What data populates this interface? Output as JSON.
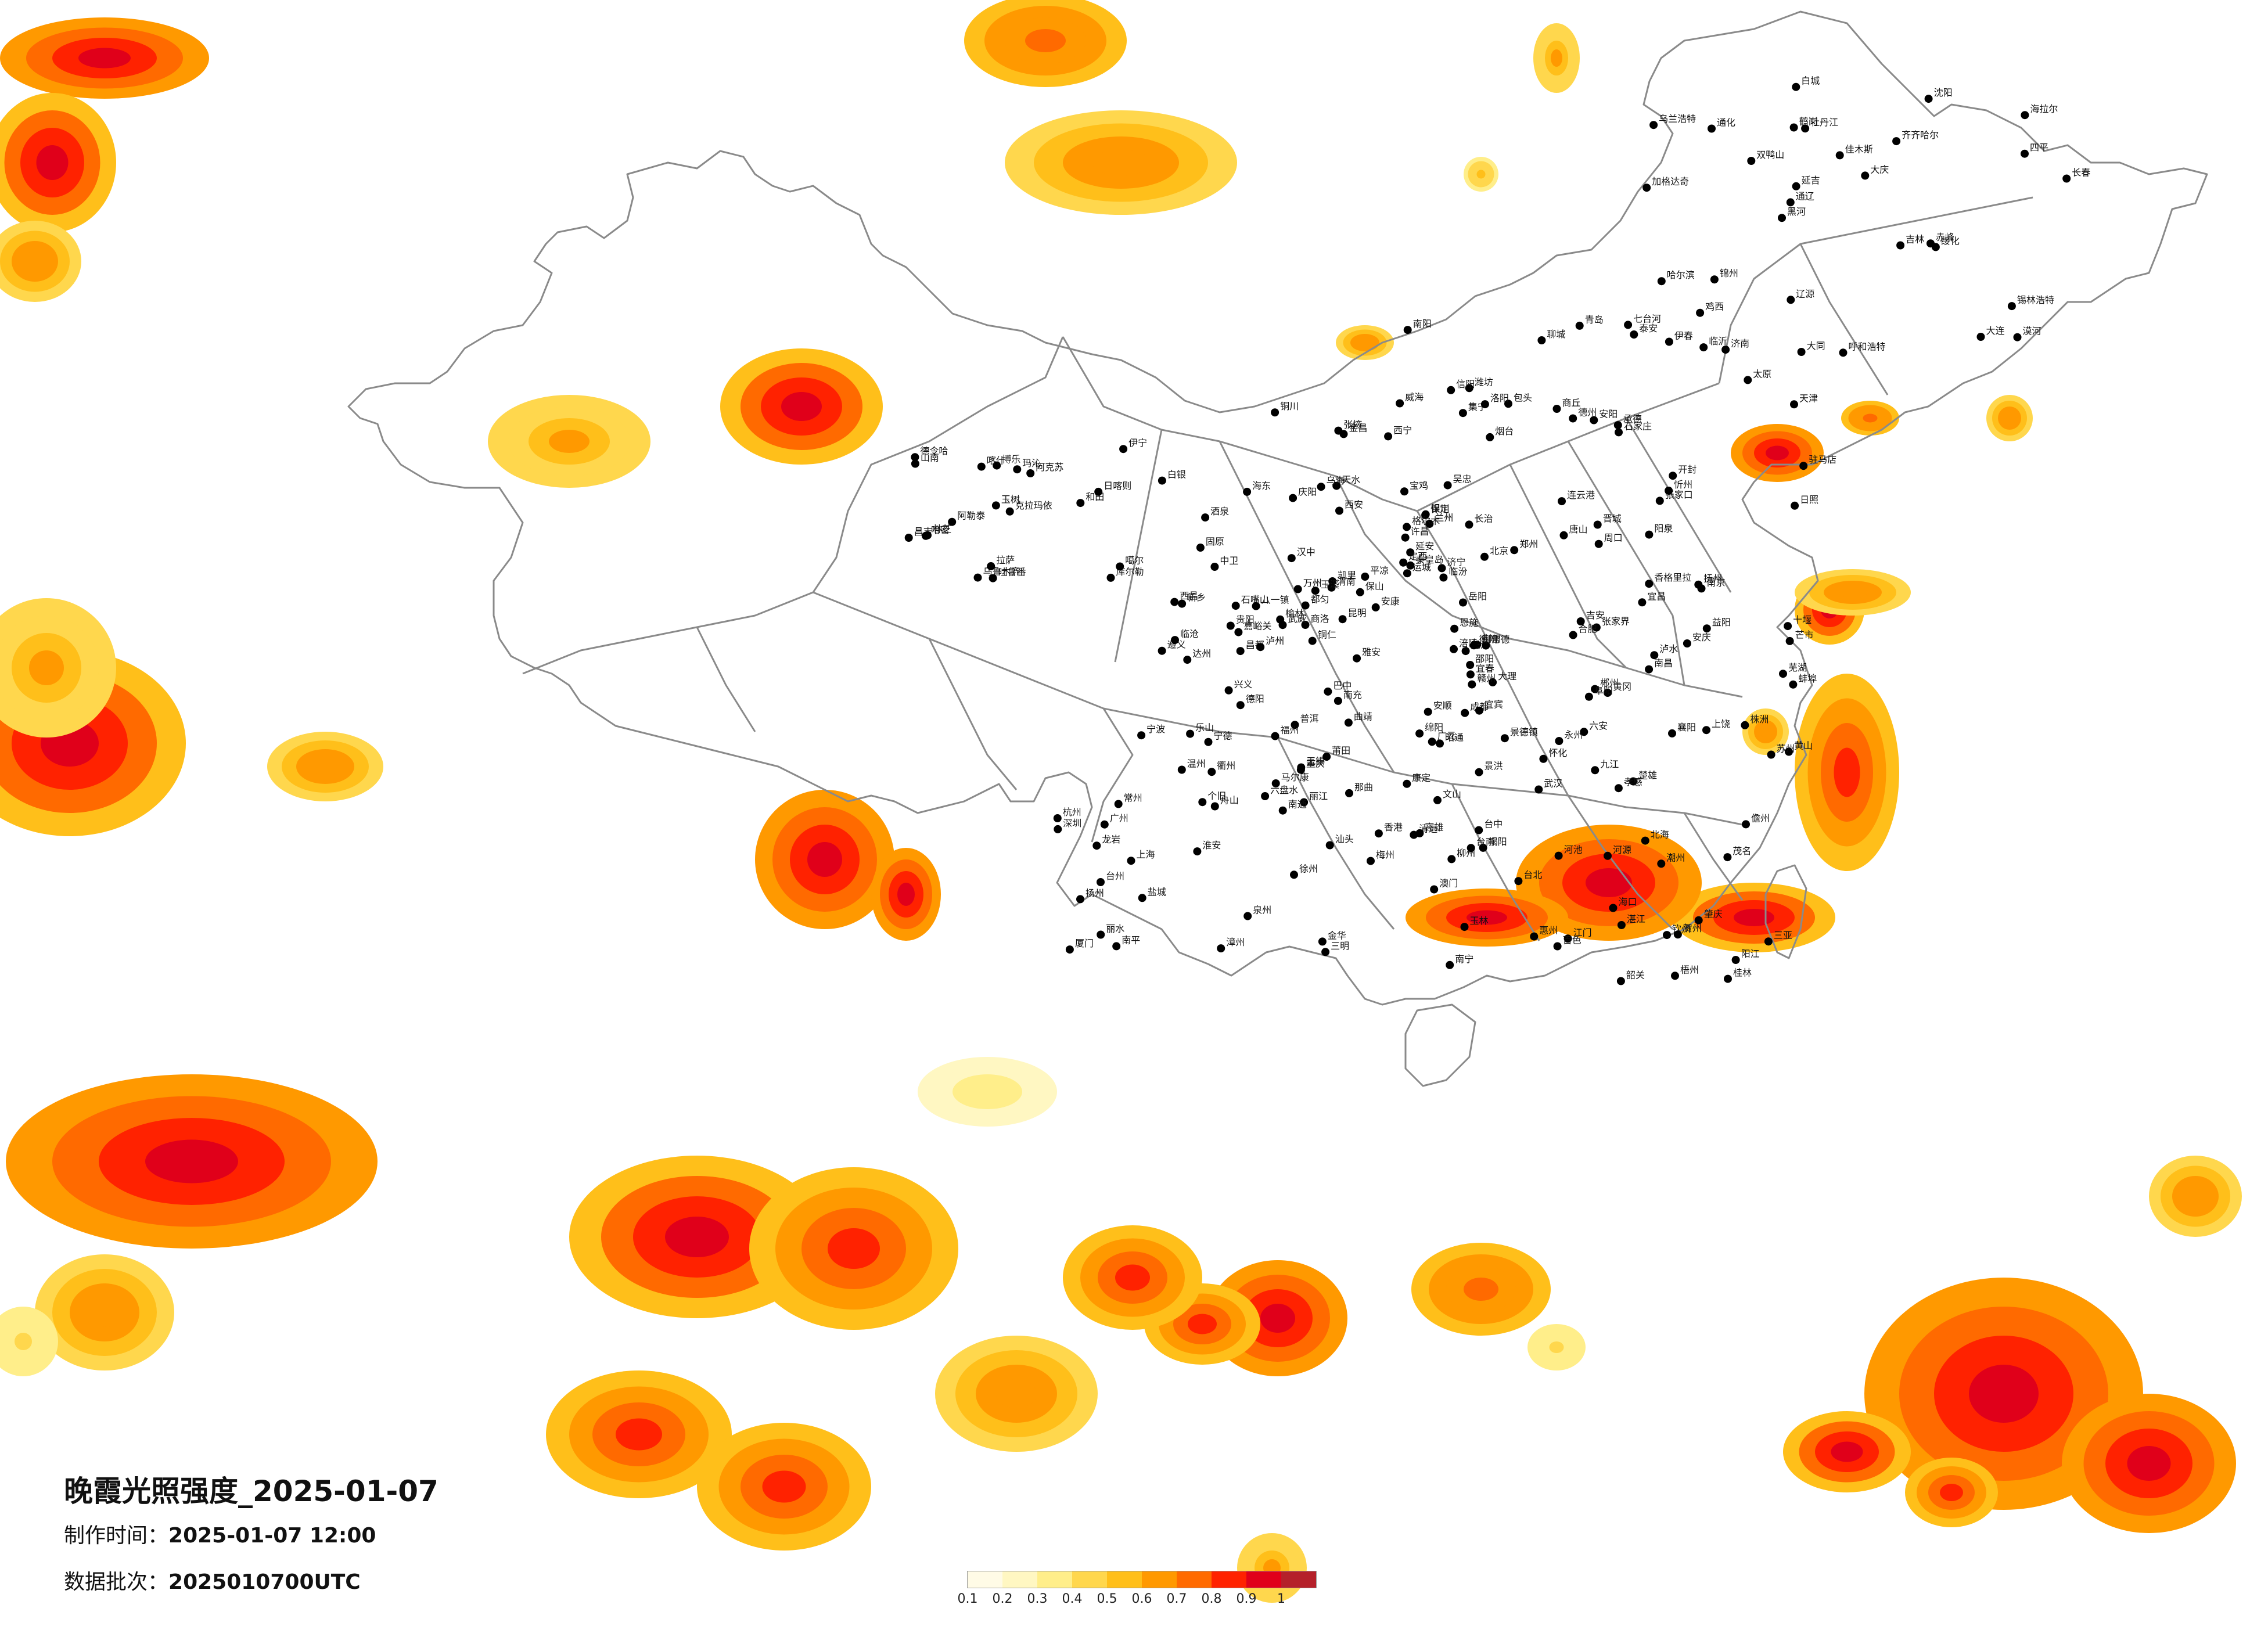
{
  "title": "晚霞光照强度_2025-01-07",
  "made_time": {
    "label": "制作时间：",
    "value": "2025-01-07 12:00"
  },
  "batch": {
    "label": "数据批次：",
    "value": "2025010700UTC"
  },
  "legend": {
    "colors": [
      "#fffbe6",
      "#fff7c2",
      "#ffee8a",
      "#ffd74d",
      "#ffbf1a",
      "#ff9900",
      "#ff6a00",
      "#ff2200",
      "#e0001a",
      "#b5202a"
    ],
    "ticks": [
      "0.1",
      "0.2",
      "0.3",
      "0.4",
      "0.5",
      "0.6",
      "0.7",
      "0.8",
      "0.9",
      "1"
    ]
  },
  "cities": [
    {
      "name": "漠河"
    },
    {
      "name": "加格达奇"
    },
    {
      "name": "海拉尔"
    },
    {
      "name": "黑河"
    },
    {
      "name": "齐齐哈尔"
    },
    {
      "name": "伊春"
    },
    {
      "name": "鹤岗"
    },
    {
      "name": "佳木斯"
    },
    {
      "name": "哈尔滨"
    },
    {
      "name": "双鸭山"
    },
    {
      "name": "七台河"
    },
    {
      "name": "鸡西"
    },
    {
      "name": "牡丹江"
    },
    {
      "name": "大庆"
    },
    {
      "name": "绥化"
    },
    {
      "name": "乌兰浩特"
    },
    {
      "name": "白城"
    },
    {
      "name": "长春"
    },
    {
      "name": "吉林"
    },
    {
      "name": "四平"
    },
    {
      "name": "通辽"
    },
    {
      "name": "辽源"
    },
    {
      "name": "延吉"
    },
    {
      "name": "通化"
    },
    {
      "name": "沈阳"
    },
    {
      "name": "锦州"
    },
    {
      "name": "大连"
    },
    {
      "name": "锡林浩特"
    },
    {
      "name": "赤峰"
    },
    {
      "name": "呼和浩特"
    },
    {
      "name": "包头"
    },
    {
      "name": "集宁"
    },
    {
      "name": "张家口"
    },
    {
      "name": "北京"
    },
    {
      "name": "天津"
    },
    {
      "name": "承德"
    },
    {
      "name": "秦皇岛"
    },
    {
      "name": "唐山"
    },
    {
      "name": "石家庄"
    },
    {
      "name": "保定"
    },
    {
      "name": "太原"
    },
    {
      "name": "大同"
    },
    {
      "name": "忻州"
    },
    {
      "name": "阳泉"
    },
    {
      "name": "长治"
    },
    {
      "name": "临汾"
    },
    {
      "name": "运城"
    },
    {
      "name": "晋城"
    },
    {
      "name": "济南"
    },
    {
      "name": "青岛"
    },
    {
      "name": "烟台"
    },
    {
      "name": "威海"
    },
    {
      "name": "潍坊"
    },
    {
      "name": "临沂"
    },
    {
      "name": "济宁"
    },
    {
      "name": "泰安"
    },
    {
      "name": "聊城"
    },
    {
      "name": "德州"
    },
    {
      "name": "日照"
    },
    {
      "name": "连云港"
    },
    {
      "name": "郑州"
    },
    {
      "name": "开封"
    },
    {
      "name": "洛阳"
    },
    {
      "name": "许昌"
    },
    {
      "name": "南阳"
    },
    {
      "name": "信阳"
    },
    {
      "name": "驻马店"
    },
    {
      "name": "商丘"
    },
    {
      "name": "周口"
    },
    {
      "name": "安阳"
    },
    {
      "name": "新乡"
    },
    {
      "name": "西安"
    },
    {
      "name": "延安"
    },
    {
      "name": "榆林"
    },
    {
      "name": "宝鸡"
    },
    {
      "name": "汉中"
    },
    {
      "name": "安康"
    },
    {
      "name": "商洛"
    },
    {
      "name": "渭南"
    },
    {
      "name": "铜川"
    },
    {
      "name": "兰州"
    },
    {
      "name": "天水"
    },
    {
      "name": "平凉"
    },
    {
      "name": "庆阳"
    },
    {
      "name": "定西"
    },
    {
      "name": "白银"
    },
    {
      "name": "武威"
    },
    {
      "name": "张掖"
    },
    {
      "name": "金昌"
    },
    {
      "name": "酒泉"
    },
    {
      "name": "嘉峪关"
    },
    {
      "name": "银川"
    },
    {
      "name": "吴忠"
    },
    {
      "name": "固原"
    },
    {
      "name": "中卫"
    },
    {
      "name": "石嘴山"
    },
    {
      "name": "乌海"
    },
    {
      "name": "西宁"
    },
    {
      "name": "海东"
    },
    {
      "name": "格尔木"
    },
    {
      "name": "德令哈"
    },
    {
      "name": "玛沁"
    },
    {
      "name": "玉树"
    },
    {
      "name": "乌鲁木齐"
    },
    {
      "name": "昌吉"
    },
    {
      "name": "克拉玛依"
    },
    {
      "name": "伊宁"
    },
    {
      "name": "博乐"
    },
    {
      "name": "吐鲁番"
    },
    {
      "name": "哈密"
    },
    {
      "name": "库尔勒"
    },
    {
      "name": "阿克苏"
    },
    {
      "name": "喀什"
    },
    {
      "name": "和田"
    },
    {
      "name": "阿勒泰"
    },
    {
      "name": "噶尔"
    },
    {
      "name": "拉萨"
    },
    {
      "name": "日喀则"
    },
    {
      "name": "山南"
    },
    {
      "name": "林芝"
    },
    {
      "name": "那曲"
    },
    {
      "name": "昌都"
    },
    {
      "name": "八一镇"
    },
    {
      "name": "成都"
    },
    {
      "name": "绵阳"
    },
    {
      "name": "德阳"
    },
    {
      "name": "乐山"
    },
    {
      "name": "宜宾"
    },
    {
      "name": "泸州"
    },
    {
      "name": "南充"
    },
    {
      "name": "达州"
    },
    {
      "name": "广元"
    },
    {
      "name": "巴中"
    },
    {
      "name": "雅安"
    },
    {
      "name": "西昌"
    },
    {
      "name": "马尔康"
    },
    {
      "name": "康定"
    },
    {
      "name": "重庆"
    },
    {
      "name": "万州"
    },
    {
      "name": "涪陵"
    },
    {
      "name": "贵阳"
    },
    {
      "name": "遵义"
    },
    {
      "name": "六盘水"
    },
    {
      "name": "安顺"
    },
    {
      "name": "凯里"
    },
    {
      "name": "都匀"
    },
    {
      "name": "铜仁"
    },
    {
      "name": "兴义"
    },
    {
      "name": "昆明"
    },
    {
      "name": "曲靖"
    },
    {
      "name": "玉溪"
    },
    {
      "name": "大理"
    },
    {
      "name": "丽江"
    },
    {
      "name": "保山"
    },
    {
      "name": "临沧"
    },
    {
      "name": "普洱"
    },
    {
      "name": "景洪"
    },
    {
      "name": "个旧"
    },
    {
      "name": "文山"
    },
    {
      "name": "昭通"
    },
    {
      "name": "楚雄"
    },
    {
      "name": "芒市"
    },
    {
      "name": "香格里拉"
    },
    {
      "name": "泸水"
    },
    {
      "name": "武汉"
    },
    {
      "name": "宜昌"
    },
    {
      "name": "襄阳"
    },
    {
      "name": "十堰"
    },
    {
      "name": "荆州"
    },
    {
      "name": "恩施"
    },
    {
      "name": "黄冈"
    },
    {
      "name": "孝感"
    },
    {
      "name": "长沙"
    },
    {
      "name": "岳阳"
    },
    {
      "name": "常德"
    },
    {
      "name": "衡阳"
    },
    {
      "name": "邵阳"
    },
    {
      "name": "怀化"
    },
    {
      "name": "郴州"
    },
    {
      "name": "株洲"
    },
    {
      "name": "永州"
    },
    {
      "name": "张家界"
    },
    {
      "name": "益阳"
    },
    {
      "name": "南昌"
    },
    {
      "name": "九江"
    },
    {
      "name": "赣州"
    },
    {
      "name": "吉安"
    },
    {
      "name": "上饶"
    },
    {
      "name": "景德镇"
    },
    {
      "name": "宜春"
    },
    {
      "name": "抚州"
    },
    {
      "name": "合肥"
    },
    {
      "name": "芜湖"
    },
    {
      "name": "安庆"
    },
    {
      "name": "蚌埠"
    },
    {
      "name": "阜阳"
    },
    {
      "name": "黄山"
    },
    {
      "name": "六安"
    },
    {
      "name": "南京"
    },
    {
      "name": "苏州"
    },
    {
      "name": "无锡"
    },
    {
      "name": "常州"
    },
    {
      "name": "徐州"
    },
    {
      "name": "南通"
    },
    {
      "name": "盐城"
    },
    {
      "name": "扬州"
    },
    {
      "name": "淮安"
    },
    {
      "name": "上海"
    },
    {
      "name": "杭州"
    },
    {
      "name": "宁波"
    },
    {
      "name": "温州"
    },
    {
      "name": "金华"
    },
    {
      "name": "衢州"
    },
    {
      "name": "丽水"
    },
    {
      "name": "台州"
    },
    {
      "name": "舟山"
    },
    {
      "name": "福州"
    },
    {
      "name": "厦门"
    },
    {
      "name": "泉州"
    },
    {
      "name": "漳州"
    },
    {
      "name": "莆田"
    },
    {
      "name": "南平"
    },
    {
      "name": "三明"
    },
    {
      "name": "龙岩"
    },
    {
      "name": "宁德"
    },
    {
      "name": "广州"
    },
    {
      "name": "深圳"
    },
    {
      "name": "汕头"
    },
    {
      "name": "湛江"
    },
    {
      "name": "茂名"
    },
    {
      "name": "肇庆"
    },
    {
      "name": "韶关"
    },
    {
      "name": "梅州"
    },
    {
      "name": "惠州"
    },
    {
      "name": "江门"
    },
    {
      "name": "阳江"
    },
    {
      "name": "清远"
    },
    {
      "name": "河源"
    },
    {
      "name": "潮州"
    },
    {
      "name": "揭阳"
    },
    {
      "name": "南宁"
    },
    {
      "name": "桂林"
    },
    {
      "name": "柳州"
    },
    {
      "name": "梧州"
    },
    {
      "name": "北海"
    },
    {
      "name": "玉林"
    },
    {
      "name": "百色"
    },
    {
      "name": "河池"
    },
    {
      "name": "钦州"
    },
    {
      "name": "贺州"
    },
    {
      "name": "海口"
    },
    {
      "name": "三亚"
    },
    {
      "name": "儋州"
    },
    {
      "name": "台北"
    },
    {
      "name": "台中"
    },
    {
      "name": "台南"
    },
    {
      "name": "高雄"
    },
    {
      "name": "香港"
    },
    {
      "name": "澳门"
    }
  ]
}
